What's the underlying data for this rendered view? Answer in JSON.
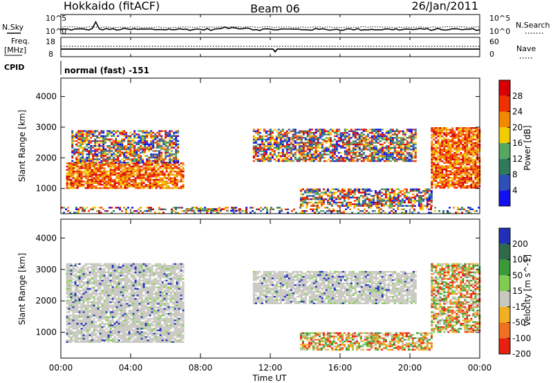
{
  "header": {
    "station": "Hokkaido (fitACF)",
    "beam": "Beam 06",
    "date": "26/Jan/2011"
  },
  "noise_panel": {
    "left_label": "N.Sky",
    "left_ticks": [
      "10^5",
      "10^0"
    ],
    "right_label": "N.Search",
    "right_ticks": [
      "10^5",
      "10^0"
    ]
  },
  "freq_panel": {
    "left_label_line1": "Freq.",
    "left_label_line2": "[MHz]",
    "left_ticks": [
      "18",
      "8"
    ],
    "right_label": "Nave",
    "right_ticks": [
      "60",
      "0"
    ]
  },
  "cpid": {
    "label": "CPID",
    "value": "normal (fast) -151"
  },
  "time_axis": {
    "label": "Time UT",
    "ticks": [
      "00:00",
      "04:00",
      "08:00",
      "12:00",
      "16:00",
      "20:00",
      "00:00"
    ]
  },
  "chart_data": [
    {
      "type": "heatmap",
      "quantity": "Power",
      "ylabel": "Slant Range [km]",
      "ylim": [
        180,
        4600
      ],
      "y_ticks": [
        1000,
        2000,
        3000,
        4000
      ],
      "xlim_hours": [
        0,
        24
      ],
      "colorbar": {
        "label": "Power [dB]",
        "ticks": [
          "4",
          "8",
          "12",
          "16",
          "20",
          "24",
          "28"
        ],
        "colors": [
          "#1010f0",
          "#2c50b8",
          "#2f7a5a",
          "#54a860",
          "#f2cc00",
          "#f28a00",
          "#f03000",
          "#d80000"
        ]
      },
      "echo_regions": [
        {
          "t": [
            0.3,
            7.0
          ],
          "r": [
            1000,
            1850
          ],
          "level": "high"
        },
        {
          "t": [
            0.6,
            6.7
          ],
          "r": [
            1850,
            2900
          ],
          "level": "mixed"
        },
        {
          "t": [
            7.2,
            10.2
          ],
          "r": [
            280,
            360
          ],
          "level": "mixed"
        },
        {
          "t": [
            11.0,
            20.3
          ],
          "r": [
            1900,
            2950
          ],
          "level": "mixed"
        },
        {
          "t": [
            13.7,
            21.3
          ],
          "r": [
            450,
            1000
          ],
          "level": "mixed"
        },
        {
          "t": [
            21.2,
            24.0
          ],
          "r": [
            1000,
            3000
          ],
          "level": "high"
        },
        {
          "t": [
            0.0,
            24.0
          ],
          "r": [
            200,
            400
          ],
          "level": "sparse"
        }
      ]
    },
    {
      "type": "heatmap",
      "quantity": "Velocity",
      "ylabel": "Slant Range [km]",
      "ylim": [
        180,
        4600
      ],
      "y_ticks": [
        1000,
        2000,
        3000,
        4000
      ],
      "xlim_hours": [
        0,
        24
      ],
      "colorbar": {
        "label": "Velocity [m s^-1]",
        "ticks": [
          "200",
          "100",
          "50",
          "15",
          "-15",
          "-50",
          "-100",
          "-200"
        ],
        "colors": [
          "#2030b8",
          "#2f6a4a",
          "#3a9a3a",
          "#80cc50",
          "#c8c8c0",
          "#f0b020",
          "#f07020",
          "#e82010"
        ]
      },
      "echo_regions": [
        {
          "t": [
            0.3,
            7.0
          ],
          "r": [
            700,
            3200
          ],
          "level": "low"
        },
        {
          "t": [
            11.0,
            20.3
          ],
          "r": [
            1900,
            2950
          ],
          "level": "low"
        },
        {
          "t": [
            13.7,
            21.3
          ],
          "r": [
            450,
            1000
          ],
          "level": "mixed"
        },
        {
          "t": [
            21.2,
            24.0
          ],
          "r": [
            1000,
            3200
          ],
          "level": "mixed"
        }
      ]
    }
  ]
}
